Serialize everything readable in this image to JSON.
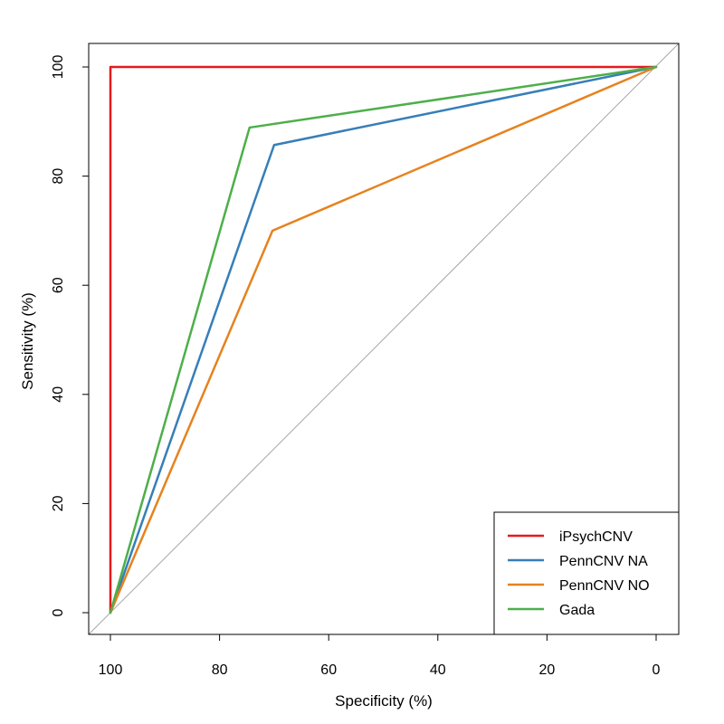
{
  "chart_data": {
    "type": "line",
    "xlabel": "Specificity (%)",
    "ylabel": "Sensitivity (%)",
    "xlim": [
      100,
      0
    ],
    "ylim": [
      0,
      100
    ],
    "x_axis_reversed": true,
    "xticks": [
      100,
      80,
      60,
      40,
      20,
      0
    ],
    "yticks": [
      0,
      20,
      40,
      60,
      80,
      100
    ],
    "grid": false,
    "legend_position": "bottom-right",
    "diagonal_reference_line": {
      "color": "#a6a6a6"
    },
    "series": [
      {
        "name": "iPsychCNV",
        "color": "#e41a1c",
        "points": [
          [
            100,
            0
          ],
          [
            100,
            100
          ],
          [
            0,
            100
          ]
        ]
      },
      {
        "name": "PennCNV NA",
        "color": "#377eb8",
        "points": [
          [
            100,
            0
          ],
          [
            70,
            85.7
          ],
          [
            0,
            100
          ]
        ]
      },
      {
        "name": "PennCNV NO",
        "color": "#e6821e",
        "points": [
          [
            100,
            0
          ],
          [
            70.3,
            70
          ],
          [
            0,
            100
          ]
        ]
      },
      {
        "name": "Gada",
        "color": "#4daf4a",
        "points": [
          [
            100,
            0
          ],
          [
            74.5,
            88.9
          ],
          [
            0,
            100
          ]
        ]
      }
    ]
  }
}
